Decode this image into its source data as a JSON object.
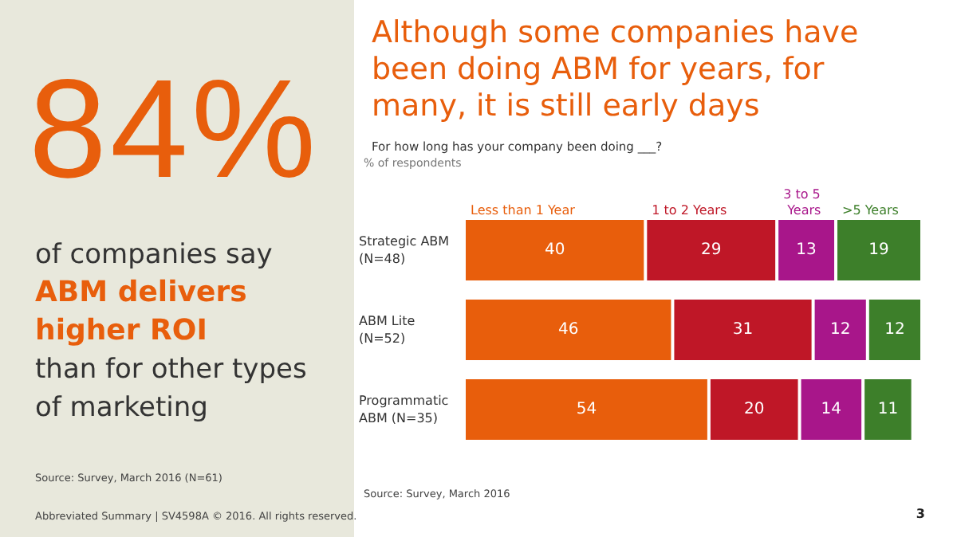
{
  "chart_data": [
    {
      "type": "other",
      "annotations": [
        "84%",
        "of companies say",
        "ABM delivers higher ROI",
        "than for other types of marketing",
        "Source: Survey, March 2016 (N=61)"
      ]
    },
    {
      "type": "bar",
      "orientation": "horizontal",
      "stacked": true,
      "title": "Although some companies have been doing ABM for years, for many, it is still early days",
      "subtitle": "For how long has your company been doing ___?",
      "categories": [
        "Strategic ABM (N=48)",
        "ABM Lite (N=52)",
        "Programmatic ABM (N=35)"
      ],
      "series": [
        {
          "name": "Less than 1 Year",
          "color": "#e85e0c",
          "values": [
            40,
            46,
            54
          ]
        },
        {
          "name": "1 to 2 Years",
          "color": "#bf1727",
          "values": [
            29,
            31,
            20
          ]
        },
        {
          "name": "3 to 5 Years",
          "color": "#a8168a",
          "values": [
            13,
            12,
            14
          ]
        },
        {
          "name": ">5 Years",
          "color": "#3d7f2a",
          "values": [
            19,
            12,
            11
          ]
        }
      ],
      "data_labels": true,
      "legend": "top",
      "annotations": [
        "% of respondents",
        "Source: Survey, March 2016",
        "Abbreviated Summary | SV4598A © 2016. All rights reserved.",
        "3"
      ]
    }
  ]
}
